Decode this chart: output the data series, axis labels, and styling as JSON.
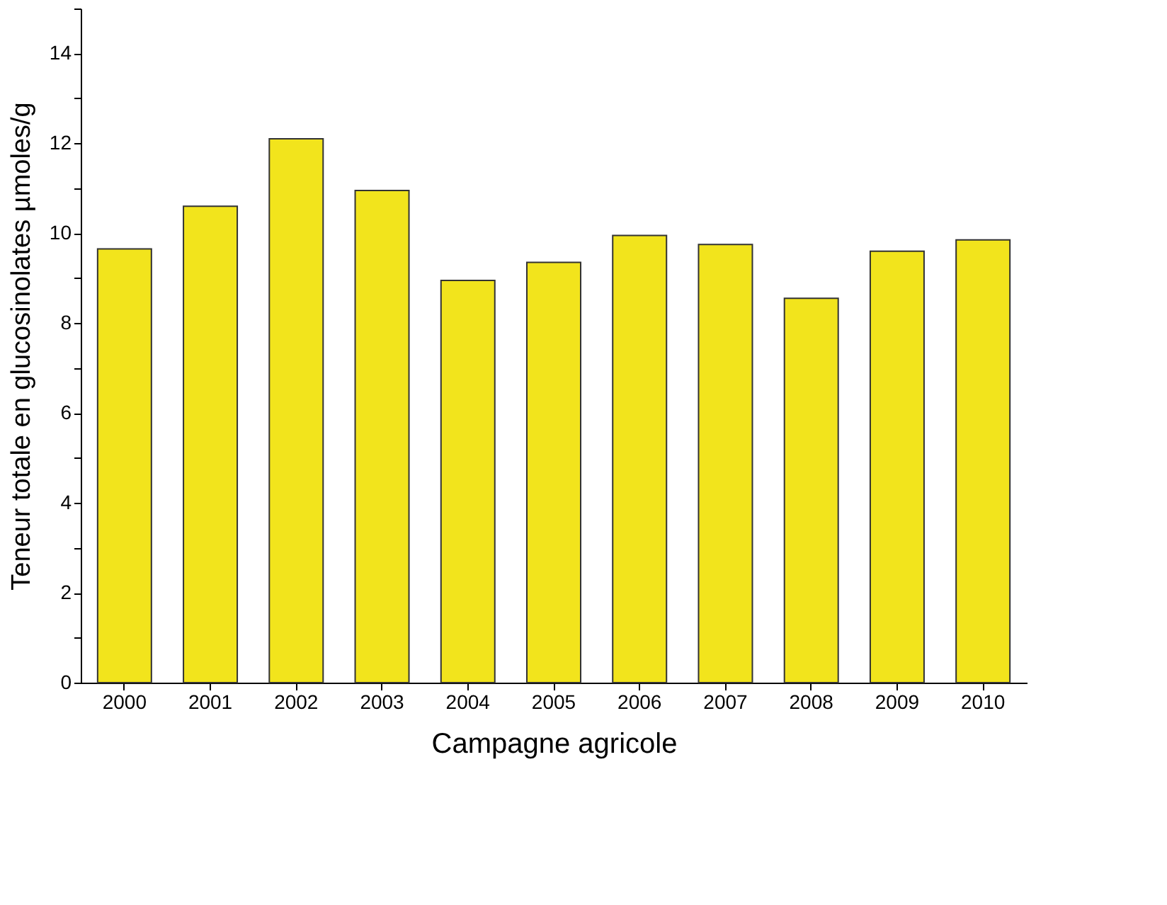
{
  "chart_data": {
    "type": "bar",
    "xlabel": "Campagne agricole",
    "ylabel": "Teneur totale en glucosinolates µmoles/g",
    "categories": [
      "2000",
      "2001",
      "2002",
      "2003",
      "2004",
      "2005",
      "2006",
      "2007",
      "2008",
      "2009",
      "2010"
    ],
    "values": [
      9.65,
      10.6,
      12.1,
      10.95,
      8.95,
      9.35,
      9.95,
      9.75,
      8.55,
      9.6,
      9.85
    ],
    "color": "#f2e41c",
    "ylim": [
      0,
      15
    ],
    "yticks": [
      0,
      {
        "value": 1,
        "label": null
      },
      2,
      {
        "value": 3,
        "label": null
      },
      4,
      {
        "value": 5,
        "label": null
      },
      6,
      {
        "value": 7,
        "label": null
      },
      8,
      {
        "value": 9,
        "label": null
      },
      10,
      {
        "value": 11,
        "label": null
      },
      12,
      {
        "value": 13,
        "label": null
      },
      14,
      {
        "value": 15,
        "label": null
      }
    ],
    "grid": false
  }
}
